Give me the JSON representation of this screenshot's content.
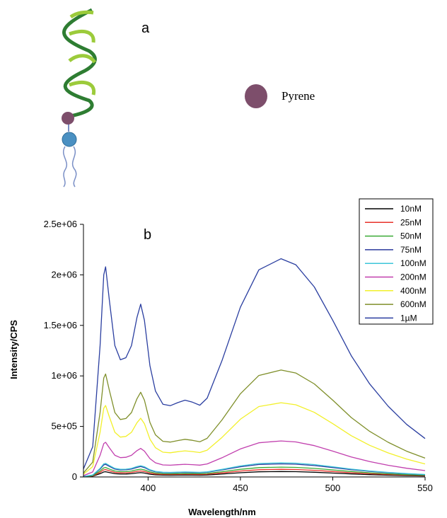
{
  "panel_a": {
    "letter": "a",
    "legend_label": "Pyrene",
    "colors": {
      "helix_light": "#9ccb3b",
      "helix_dark": "#2e7d32",
      "pyrene": "#7d4e6b",
      "lipid_head": "#4a90c2",
      "lipid_tail": "#7a8fc6"
    }
  },
  "panel_b": {
    "letter": "b"
  },
  "chart_data": {
    "type": "line",
    "xlabel": "Wavelength/nm",
    "ylabel": "Intensity/CPS",
    "xlim": [
      365,
      550
    ],
    "ylim": [
      0,
      2500000
    ],
    "xticks": [
      400,
      450,
      500,
      550
    ],
    "xtick_labels": [
      "400",
      "450",
      "500",
      "550"
    ],
    "yticks": [
      0,
      500000,
      1000000,
      1500000,
      2000000,
      2500000
    ],
    "ytick_labels": [
      "0",
      "5e+05",
      "1e+06",
      "1.5e+06",
      "2e+06",
      "2.5e+06"
    ],
    "grid": false,
    "legend_position": "top-right",
    "series": [
      {
        "name": "10nM",
        "color": "#000000",
        "scale": 0.025
      },
      {
        "name": "25nM",
        "color": "#e8322a",
        "scale": 0.035
      },
      {
        "name": "50nM",
        "color": "#3aaa35",
        "scale": 0.045
      },
      {
        "name": "75nM",
        "color": "#2b3a9c",
        "scale": 0.06
      },
      {
        "name": "100nM",
        "color": "#3cc6d9",
        "scale": 0.065
      },
      {
        "name": "200nM",
        "color": "#c13fae",
        "scale": 0.165
      },
      {
        "name": "400nM",
        "color": "#f2f02a",
        "scale": 0.34
      },
      {
        "name": "600nM",
        "color": "#7f8f2a",
        "scale": 0.49
      },
      {
        "name": "1µM",
        "color": "#2a3ea0",
        "scale": 1.0
      }
    ],
    "reference_curve": {
      "x": [
        365,
        370,
        374,
        376,
        377,
        379,
        382,
        385,
        388,
        391,
        394,
        396,
        398,
        401,
        404,
        408,
        412,
        416,
        420,
        424,
        428,
        432,
        440,
        450,
        460,
        472,
        480,
        490,
        500,
        510,
        520,
        530,
        540,
        550
      ],
      "y": [
        80000,
        300000,
        1300000,
        2000000,
        2080000,
        1750000,
        1300000,
        1160000,
        1180000,
        1300000,
        1580000,
        1710000,
        1550000,
        1100000,
        850000,
        720000,
        705000,
        735000,
        760000,
        740000,
        710000,
        780000,
        1150000,
        1680000,
        2050000,
        2160000,
        2100000,
        1880000,
        1550000,
        1200000,
        920000,
        700000,
        520000,
        380000
      ]
    }
  }
}
